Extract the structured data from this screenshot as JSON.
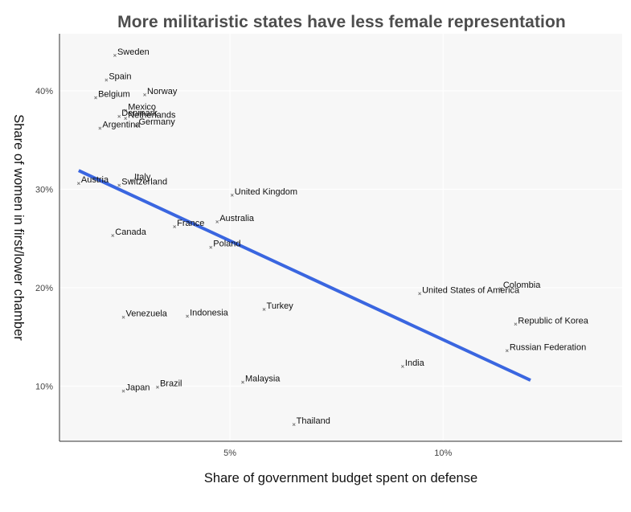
{
  "chart_data": {
    "type": "scatter",
    "title": "More militaristic states have less female representation",
    "xlabel": "Share of government budget spent on defense",
    "ylabel": "Share of women in first/lower chamber",
    "x_unit": "%",
    "y_unit": "%",
    "xlim": [
      1,
      14.2
    ],
    "ylim": [
      4.4,
      45.8
    ],
    "x_ticks": [
      5,
      10
    ],
    "x_tick_labels": [
      "5%",
      "10%"
    ],
    "y_ticks": [
      10,
      20,
      30,
      40
    ],
    "y_tick_labels": [
      "10%",
      "20%",
      "30%",
      "40%"
    ],
    "grid": true,
    "colors": {
      "trend_line": "#3a66e0",
      "plot_background": "#f7f7f7",
      "gridline": "#ffffff"
    },
    "points": [
      {
        "label": "Sweden",
        "x": 2.3,
        "y": 43.6
      },
      {
        "label": "Spain",
        "x": 2.1,
        "y": 41.1
      },
      {
        "label": "Norway",
        "x": 3.0,
        "y": 39.6
      },
      {
        "label": "Belgium",
        "x": 1.85,
        "y": 39.3
      },
      {
        "label": "Mexico",
        "x": 2.55,
        "y": 38.0
      },
      {
        "label": "Denmark",
        "x": 2.4,
        "y": 37.4
      },
      {
        "label": "Netherlands",
        "x": 2.55,
        "y": 37.2
      },
      {
        "label": "Germany",
        "x": 2.8,
        "y": 36.5
      },
      {
        "label": "Argentina",
        "x": 1.95,
        "y": 36.2
      },
      {
        "label": "Austria",
        "x": 1.45,
        "y": 30.6
      },
      {
        "label": "Italy",
        "x": 2.7,
        "y": 30.9
      },
      {
        "label": "Switzerland",
        "x": 2.4,
        "y": 30.4
      },
      {
        "label": "United Kingdom",
        "x": 5.05,
        "y": 29.4
      },
      {
        "label": "Australia",
        "x": 4.7,
        "y": 26.7
      },
      {
        "label": "France",
        "x": 3.7,
        "y": 26.2
      },
      {
        "label": "Canada",
        "x": 2.25,
        "y": 25.3
      },
      {
        "label": "Poland",
        "x": 4.55,
        "y": 24.1
      },
      {
        "label": "Colombia",
        "x": 11.35,
        "y": 19.9
      },
      {
        "label": "United States of America",
        "x": 9.45,
        "y": 19.4
      },
      {
        "label": "Turkey",
        "x": 5.8,
        "y": 17.8
      },
      {
        "label": "Indonesia",
        "x": 4.0,
        "y": 17.1
      },
      {
        "label": "Venezuela",
        "x": 2.5,
        "y": 17.0
      },
      {
        "label": "Republic of Korea",
        "x": 11.7,
        "y": 16.3
      },
      {
        "label": "Russian Federation",
        "x": 11.5,
        "y": 13.6
      },
      {
        "label": "India",
        "x": 9.05,
        "y": 12.0
      },
      {
        "label": "Malaysia",
        "x": 5.3,
        "y": 10.4
      },
      {
        "label": "Brazil",
        "x": 3.3,
        "y": 9.9
      },
      {
        "label": "Japan",
        "x": 2.5,
        "y": 9.5
      },
      {
        "label": "Thailand",
        "x": 6.5,
        "y": 6.1
      }
    ],
    "trend_line": {
      "x": [
        1.45,
        12.05
      ],
      "y": [
        31.9,
        10.6
      ]
    }
  }
}
